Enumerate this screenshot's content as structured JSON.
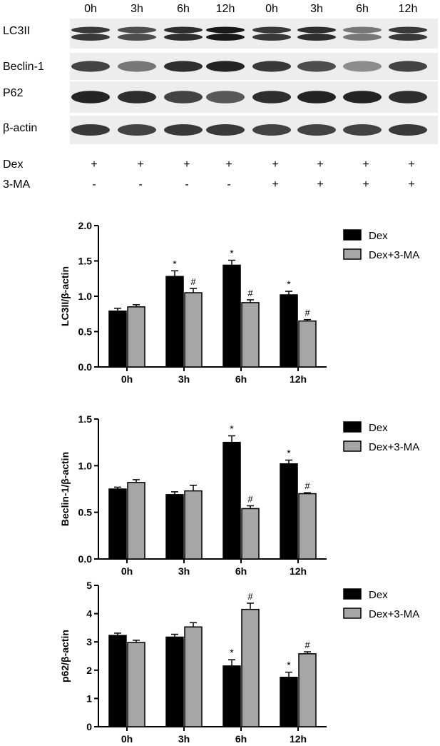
{
  "blot": {
    "time_labels": [
      "0h",
      "3h",
      "6h",
      "12h",
      "0h",
      "3h",
      "6h",
      "12h"
    ],
    "rows": [
      {
        "label": "LC3II",
        "intensity": [
          0.85,
          0.75,
          0.9,
          1.0,
          0.85,
          0.9,
          0.55,
          0.85
        ],
        "double": true
      },
      {
        "label": "Beclin-1",
        "intensity": [
          0.8,
          0.55,
          0.9,
          0.95,
          0.85,
          0.75,
          0.45,
          0.8
        ],
        "double": false
      },
      {
        "label": "P62",
        "intensity": [
          0.95,
          0.9,
          0.8,
          0.7,
          0.9,
          0.95,
          0.95,
          0.9
        ],
        "double": false
      },
      {
        "label": "β-actin",
        "intensity": [
          0.85,
          0.8,
          0.85,
          0.85,
          0.8,
          0.8,
          0.8,
          0.85
        ],
        "double": false
      }
    ],
    "treatments": [
      {
        "label": "Dex",
        "marks": [
          "+",
          "+",
          "+",
          "+",
          "+",
          "+",
          "+",
          "+"
        ]
      },
      {
        "label": "3-MA",
        "marks": [
          "-",
          "-",
          "-",
          "-",
          "+",
          "+",
          "+",
          "+"
        ]
      }
    ]
  },
  "colors": {
    "dex": "#000000",
    "dex_3ma": "#a6a6a6"
  },
  "chart_data": [
    {
      "type": "bar",
      "categories": [
        "0h",
        "3h",
        "6h",
        "12h"
      ],
      "series": [
        {
          "name": "Dex",
          "values": [
            0.79,
            1.28,
            1.44,
            1.02
          ],
          "errors": [
            0.04,
            0.08,
            0.07,
            0.05
          ],
          "marks": [
            "",
            "*",
            "*",
            "*"
          ]
        },
        {
          "name": "Dex+3-MA",
          "values": [
            0.85,
            1.05,
            0.91,
            0.65
          ],
          "errors": [
            0.03,
            0.06,
            0.04,
            0.02
          ],
          "marks": [
            "",
            "#",
            "#",
            "#"
          ]
        }
      ],
      "ylabel": "LC3II/β-actin",
      "ylim": [
        0,
        2.0
      ],
      "yticks": [
        "0.0",
        "0.5",
        "1.0",
        "1.5",
        "2.0"
      ],
      "legend": "top-right"
    },
    {
      "type": "bar",
      "categories": [
        "0h",
        "3h",
        "6h",
        "12h"
      ],
      "series": [
        {
          "name": "Dex",
          "values": [
            0.75,
            0.69,
            1.25,
            1.02
          ],
          "errors": [
            0.02,
            0.03,
            0.07,
            0.04
          ],
          "marks": [
            "",
            "",
            "*",
            "*"
          ]
        },
        {
          "name": "Dex+3-MA",
          "values": [
            0.82,
            0.73,
            0.54,
            0.7
          ],
          "errors": [
            0.03,
            0.06,
            0.03,
            0.01
          ],
          "marks": [
            "",
            "",
            "#",
            "#"
          ]
        }
      ],
      "ylabel": "Beclin-1/β-actin",
      "ylim": [
        0,
        1.5
      ],
      "yticks": [
        "0.0",
        "0.5",
        "1.0",
        "1.5"
      ],
      "legend": "top-right"
    },
    {
      "type": "bar",
      "categories": [
        "0h",
        "3h",
        "6h",
        "12h"
      ],
      "series": [
        {
          "name": "Dex",
          "values": [
            3.23,
            3.17,
            2.15,
            1.75
          ],
          "errors": [
            0.08,
            0.1,
            0.22,
            0.18
          ],
          "marks": [
            "",
            "",
            "*",
            "*"
          ]
        },
        {
          "name": "Dex+3-MA",
          "values": [
            2.98,
            3.53,
            4.15,
            2.58
          ],
          "errors": [
            0.08,
            0.15,
            0.22,
            0.07
          ],
          "marks": [
            "",
            "",
            "#",
            "#"
          ]
        }
      ],
      "ylabel": "p62/β-actin",
      "ylim": [
        0,
        5
      ],
      "yticks": [
        "0",
        "1",
        "2",
        "3",
        "4",
        "5"
      ],
      "legend": "top-right"
    }
  ]
}
